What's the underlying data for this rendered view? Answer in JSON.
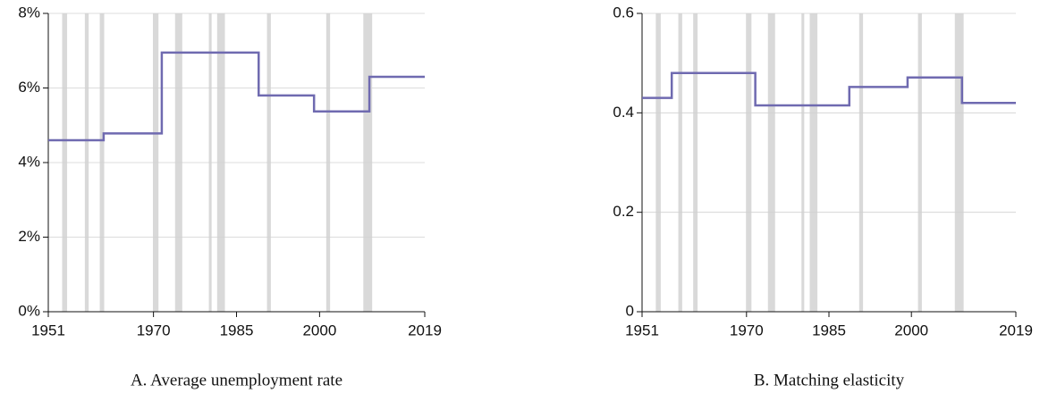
{
  "chart_data": [
    {
      "type": "line",
      "step": "post",
      "caption": "A. Average unemployment rate",
      "color": "#6f6ab0",
      "x": [
        1951,
        1961,
        1971.5,
        1989,
        1999,
        2009
      ],
      "values": [
        4.6,
        4.78,
        6.95,
        5.8,
        5.37,
        6.3
      ],
      "xlim": [
        1951,
        2019
      ],
      "xticks": [
        1951,
        1970,
        1985,
        2000,
        2019
      ],
      "ylim": [
        0,
        8
      ],
      "yticks": [
        {
          "value": 0,
          "label": "0%"
        },
        {
          "value": 2,
          "label": "2%"
        },
        {
          "value": 4,
          "label": "4%"
        },
        {
          "value": 6,
          "label": "6%"
        },
        {
          "value": 8,
          "label": "8%"
        }
      ],
      "grid": true,
      "recession_color": "#d9d9d9",
      "recessions": [
        [
          1953.5,
          1954.4
        ],
        [
          1957.6,
          1958.3
        ],
        [
          1960.3,
          1961.1
        ],
        [
          1969.9,
          1970.9
        ],
        [
          1973.9,
          1975.2
        ],
        [
          1980.0,
          1980.5
        ],
        [
          1981.5,
          1982.9
        ],
        [
          1990.5,
          1991.2
        ],
        [
          2001.2,
          2001.9
        ],
        [
          2007.9,
          2009.5
        ]
      ]
    },
    {
      "type": "line",
      "step": "post",
      "caption": "B. Matching elasticity",
      "color": "#6f6ab0",
      "x": [
        1951,
        1956.4,
        1971.6,
        1988.7,
        1999.3,
        2009.2
      ],
      "values": [
        0.43,
        0.48,
        0.415,
        0.452,
        0.471,
        0.42
      ],
      "xlim": [
        1951,
        2019
      ],
      "xticks": [
        1951,
        1970,
        1985,
        2000,
        2019
      ],
      "ylim": [
        0,
        0.6
      ],
      "yticks": [
        0,
        0.2,
        0.4,
        0.6
      ],
      "grid": true,
      "recession_color": "#d9d9d9",
      "recessions": [
        [
          1953.5,
          1954.4
        ],
        [
          1957.6,
          1958.3
        ],
        [
          1960.3,
          1961.1
        ],
        [
          1969.9,
          1970.9
        ],
        [
          1973.9,
          1975.2
        ],
        [
          1980.0,
          1980.5
        ],
        [
          1981.5,
          1982.9
        ],
        [
          1990.5,
          1991.2
        ],
        [
          2001.2,
          2001.9
        ],
        [
          2007.9,
          2009.5
        ]
      ]
    }
  ]
}
